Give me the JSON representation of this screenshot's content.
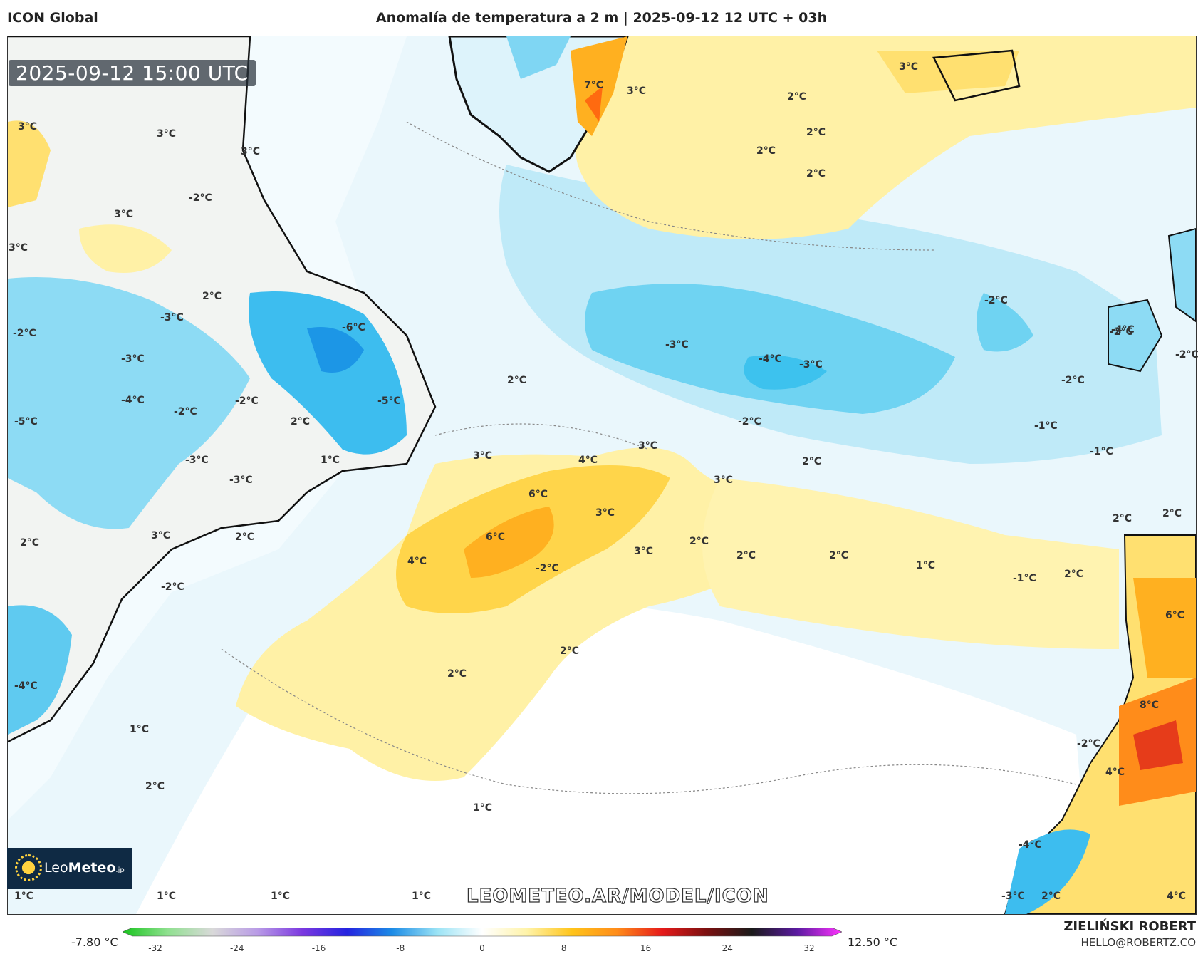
{
  "header": {
    "model": "ICON Global",
    "title": "Anomalía de temperatura a 2 m | 2025-09-12 12 UTC + 03h"
  },
  "timestamp": "2025-09-12 15:00 UTC",
  "logo": {
    "prefix": "Leo",
    "suffix": "Meteo",
    "tld": ".jp"
  },
  "watermark_url": "LEOMETEO.AR/MODEL/ICON",
  "footer": {
    "author": "ZIELIŃSKI ROBERT",
    "email": "HELLO@ROBERTZ.CO"
  },
  "colorbar": {
    "min_label": "-7.80 °C",
    "max_label": "12.50 °C",
    "ticks": [
      "-32",
      "-24",
      "-16",
      "-8",
      "0",
      "8",
      "16",
      "24",
      "32"
    ],
    "colors": [
      "#17c41c",
      "#8fe08f",
      "#d9d9d9",
      "#b99be6",
      "#7b38e0",
      "#2424e0",
      "#1c8ce6",
      "#9be3f5",
      "#ffffff",
      "#fff3a8",
      "#ffc41a",
      "#ff8c1a",
      "#e61a1a",
      "#7a1010",
      "#1a1a1a",
      "#5a1aa0",
      "#ff33ff"
    ]
  },
  "map_labels": [
    "3°C",
    "3°C",
    "3°C",
    "3°C",
    "-2°C",
    "3°C",
    "3°C",
    "2°C",
    "2°C",
    "2°C",
    "2°C",
    "-2°C",
    "7°C",
    "3°C",
    "2°C",
    "-3°C",
    "-2°C",
    "-6°C",
    "-3°C",
    "-3°C",
    "-4°C",
    "-2°C",
    "-2°C",
    "-4°C",
    "-3°C",
    "-4°C",
    "-2°C",
    "-5°C",
    "-2°C",
    "-5°C",
    "2°C",
    "2°C",
    "-2°C",
    "-1°C",
    "-2°C",
    "-3°C",
    "-3°C",
    "1°C",
    "3°C",
    "4°C",
    "3°C",
    "2°C",
    "-1°C",
    "3°C",
    "6°C",
    "3°C",
    "2°C",
    "2°C",
    "6°C",
    "3°C",
    "2°C",
    "2°C",
    "2°C",
    "4°C",
    "3°C",
    "-2°C",
    "1°C",
    "2°C",
    "2°C",
    "-1°C",
    "-2°C",
    "6°C",
    "2°C",
    "-4°C",
    "2°C",
    "1°C",
    "8°C",
    "-2°C",
    "2°C",
    "4°C",
    "1°C",
    "-4°C",
    "2°C",
    "1°C",
    "1°C",
    "1°C",
    "1°C",
    "-3°C",
    "2°C",
    "4°C"
  ]
}
